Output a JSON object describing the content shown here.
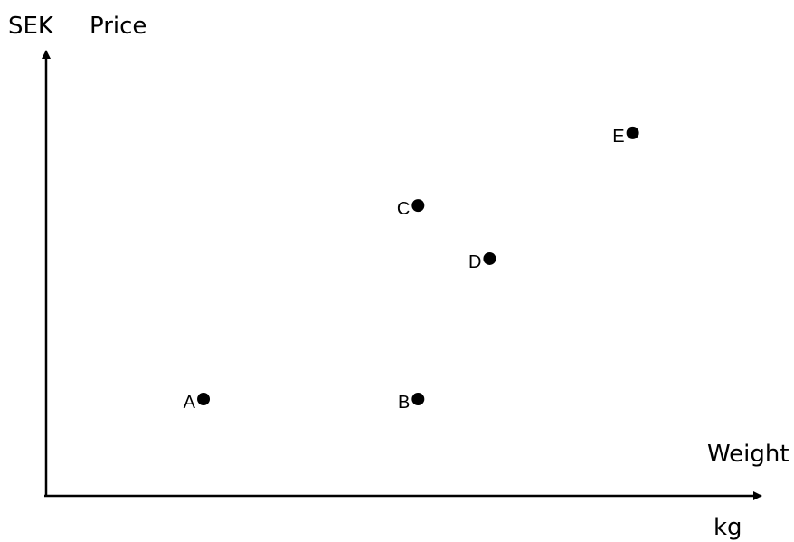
{
  "chart_data": {
    "type": "scatter",
    "title": "",
    "xlabel": "Weight",
    "xunit": "kg",
    "ylabel": "Price",
    "yunit": "SEK",
    "grid": false,
    "colors": {
      "axis": "#000000",
      "point": "#000000",
      "background": "#ffffff"
    },
    "points": [
      {
        "label": "A",
        "x": 2.2,
        "y": 1.0
      },
      {
        "label": "B",
        "x": 5.2,
        "y": 1.0
      },
      {
        "label": "C",
        "x": 5.2,
        "y": 3.0
      },
      {
        "label": "D",
        "x": 6.2,
        "y": 2.45
      },
      {
        "label": "E",
        "x": 8.2,
        "y": 3.75
      }
    ],
    "xlim": [
      0,
      10
    ],
    "ylim": [
      0,
      4.6
    ]
  }
}
